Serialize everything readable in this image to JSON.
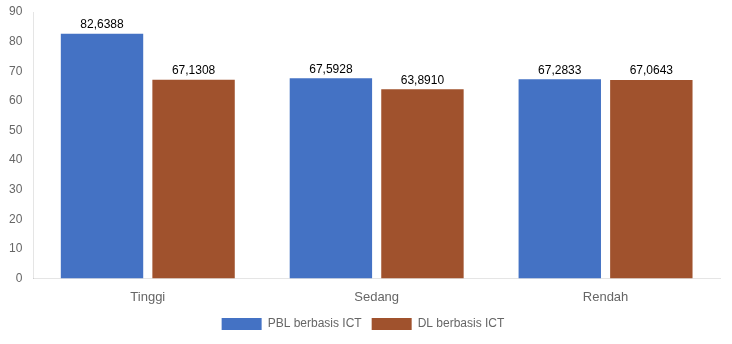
{
  "chart_data": {
    "type": "bar",
    "categories": [
      "Tinggi",
      "Sedang",
      "Rendah"
    ],
    "series": [
      {
        "name": "PBL berbasis ICT",
        "color": "#4472C4",
        "values": [
          82.6388,
          67.5928,
          67.2833
        ],
        "value_labels": [
          "82,6388",
          "67,5928",
          "67,2833"
        ]
      },
      {
        "name": "DL berbasis ICT",
        "color": "#A0522D",
        "values": [
          67.1308,
          63.891,
          67.0643
        ],
        "value_labels": [
          "67,1308",
          "63,8910",
          "67,0643"
        ]
      }
    ],
    "ylim": [
      0,
      90
    ],
    "yticks": [
      0,
      10,
      20,
      30,
      40,
      50,
      60,
      70,
      80,
      90
    ],
    "grid": false,
    "legend": "bottom",
    "data_labels": true
  }
}
